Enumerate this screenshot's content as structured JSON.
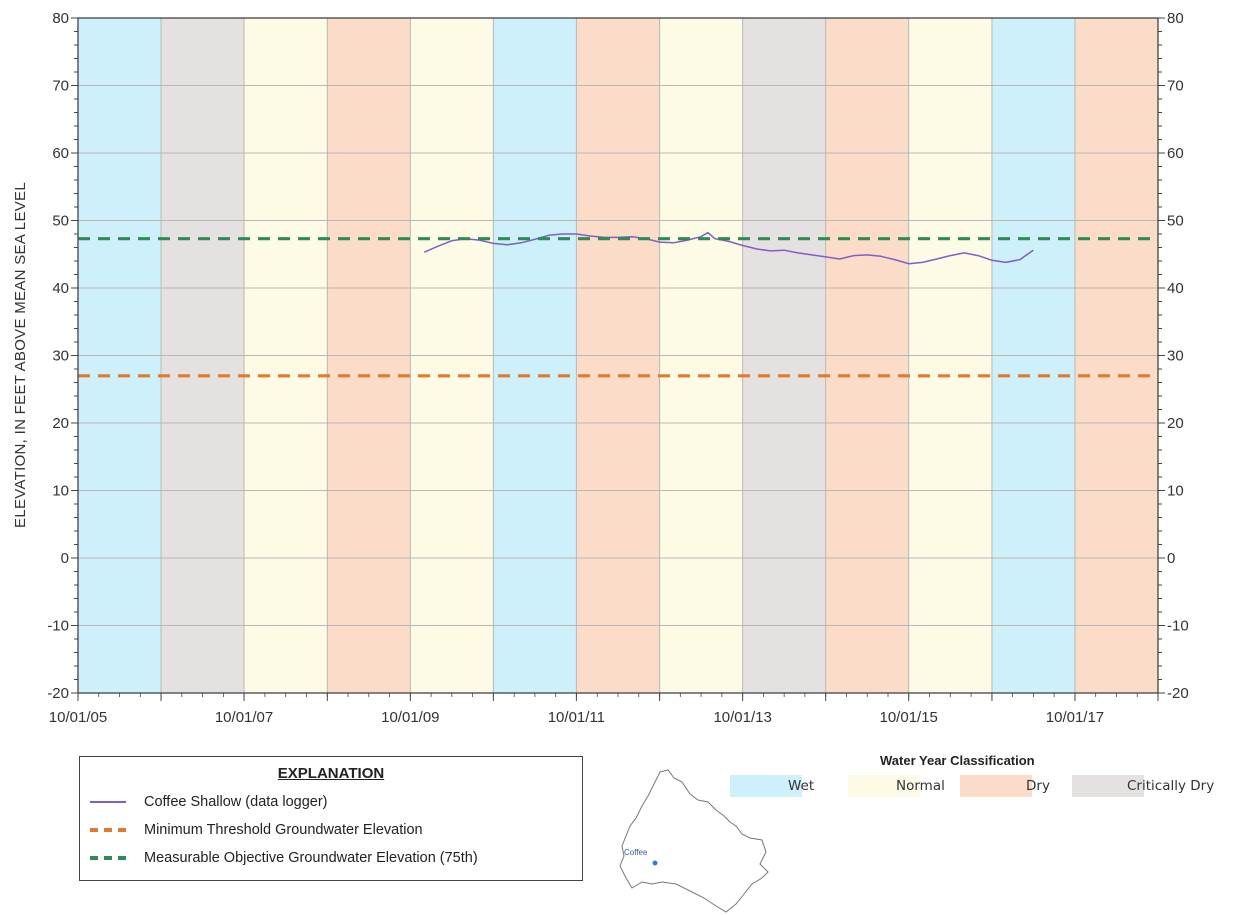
{
  "chart_data": {
    "type": "line",
    "ylabel": "ELEVATION, IN FEET ABOVE MEAN SEA LEVEL",
    "ylim": [
      -20,
      80
    ],
    "yticks": [
      -20,
      -10,
      0,
      10,
      20,
      30,
      40,
      50,
      60,
      70,
      80
    ],
    "xlim": [
      "2005-10-01",
      "2018-10-01"
    ],
    "xtick_labels": [
      "10/01/05",
      "10/01/07",
      "10/01/09",
      "10/01/11",
      "10/01/13",
      "10/01/15",
      "10/01/17"
    ],
    "xtick_dates": [
      "2005-10-01",
      "2007-10-01",
      "2009-10-01",
      "2011-10-01",
      "2013-10-01",
      "2015-10-01",
      "2017-10-01"
    ],
    "grid": true,
    "water_year_bands": [
      {
        "start": "2005-10-01",
        "end": "2006-10-01",
        "class": "Wet"
      },
      {
        "start": "2006-10-01",
        "end": "2007-10-01",
        "class": "Critically Dry"
      },
      {
        "start": "2007-10-01",
        "end": "2008-10-01",
        "class": "Normal"
      },
      {
        "start": "2008-10-01",
        "end": "2009-10-01",
        "class": "Dry"
      },
      {
        "start": "2009-10-01",
        "end": "2010-10-01",
        "class": "Normal"
      },
      {
        "start": "2010-10-01",
        "end": "2011-10-01",
        "class": "Wet"
      },
      {
        "start": "2011-10-01",
        "end": "2012-10-01",
        "class": "Dry"
      },
      {
        "start": "2012-10-01",
        "end": "2013-10-01",
        "class": "Normal"
      },
      {
        "start": "2013-10-01",
        "end": "2014-10-01",
        "class": "Critically Dry"
      },
      {
        "start": "2014-10-01",
        "end": "2015-10-01",
        "class": "Dry"
      },
      {
        "start": "2015-10-01",
        "end": "2016-10-01",
        "class": "Normal"
      },
      {
        "start": "2016-10-01",
        "end": "2017-10-01",
        "class": "Wet"
      },
      {
        "start": "2017-10-01",
        "end": "2018-10-01",
        "class": "Dry"
      }
    ],
    "series": [
      {
        "name": "Coffee Shallow (data logger)",
        "color": "#7d5fc7",
        "x": [
          "2009-12-01",
          "2010-02-01",
          "2010-04-01",
          "2010-06-01",
          "2010-08-01",
          "2010-10-01",
          "2010-12-01",
          "2011-02-01",
          "2011-04-01",
          "2011-06-01",
          "2011-08-01",
          "2011-10-01",
          "2011-12-01",
          "2012-02-01",
          "2012-04-01",
          "2012-06-01",
          "2012-08-01",
          "2012-10-01",
          "2012-12-01",
          "2013-02-01",
          "2013-04-01",
          "2013-05-01",
          "2013-06-01",
          "2013-08-01",
          "2013-10-01",
          "2013-12-01",
          "2014-02-01",
          "2014-04-01",
          "2014-06-01",
          "2014-08-01",
          "2014-10-01",
          "2014-12-01",
          "2015-02-01",
          "2015-04-01",
          "2015-06-01",
          "2015-08-01",
          "2015-10-01",
          "2015-12-01",
          "2016-02-01",
          "2016-04-01",
          "2016-06-01",
          "2016-08-01",
          "2016-10-01",
          "2016-12-01",
          "2017-02-01",
          "2017-04-01"
        ],
        "y": [
          45.3,
          46.2,
          47.0,
          47.3,
          47.1,
          46.6,
          46.4,
          46.7,
          47.2,
          47.8,
          48.0,
          48.0,
          47.7,
          47.5,
          47.5,
          47.6,
          47.3,
          46.8,
          46.7,
          47.1,
          47.6,
          48.2,
          47.3,
          46.9,
          46.3,
          45.8,
          45.5,
          45.6,
          45.2,
          44.9,
          44.6,
          44.3,
          44.8,
          44.9,
          44.7,
          44.2,
          43.6,
          43.8,
          44.3,
          44.8,
          45.2,
          44.8,
          44.1,
          43.8,
          44.2,
          45.6
        ]
      },
      {
        "name": "Minimum Threshold Groundwater Elevation",
        "color": "#e07b2e",
        "style": "dashed",
        "x": [
          "2005-10-01",
          "2018-10-01"
        ],
        "y": [
          27,
          27
        ]
      },
      {
        "name": "Measurable Objective Groundwater Elevation (75th)",
        "color": "#2e8b57",
        "style": "dashed",
        "x": [
          "2005-10-01",
          "2018-10-01"
        ],
        "y": [
          47.3,
          47.3
        ]
      }
    ]
  },
  "explanation": {
    "title": "EXPLANATION",
    "items": [
      {
        "label": "Coffee Shallow (data logger)"
      },
      {
        "label": "Minimum Threshold Groundwater Elevation"
      },
      {
        "label": "Measurable Objective Groundwater Elevation (75th)"
      }
    ]
  },
  "water_year_classification": {
    "title": "Water Year Classification",
    "classes": [
      {
        "label": "Wet",
        "color": "#cdf0fa"
      },
      {
        "label": "Normal",
        "color": "#fdfbe6"
      },
      {
        "label": "Dry",
        "color": "#fbdcc9"
      },
      {
        "label": "Critically Dry",
        "color": "#e6e1e1"
      }
    ]
  },
  "map": {
    "label": "Coffee"
  }
}
